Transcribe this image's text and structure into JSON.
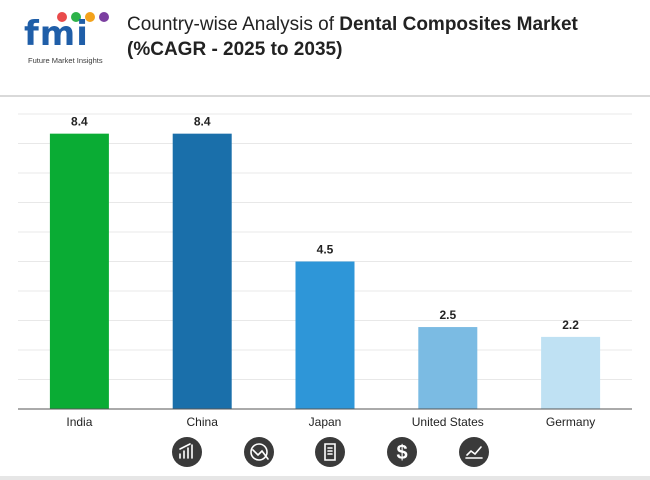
{
  "brand": {
    "logo_text": "fmi",
    "logo_subtitle": "Future Market Insights"
  },
  "title": {
    "prefix": "Country-wise Analysis of ",
    "highlight": "Dental Composites Market",
    "line2": "(%CAGR - 2025 to 2035)"
  },
  "chart_data": {
    "type": "bar",
    "categories": [
      "India",
      "China",
      "Japan",
      "United States",
      "Germany"
    ],
    "values": [
      8.4,
      8.4,
      4.5,
      2.5,
      2.2
    ],
    "data_labels": [
      "8.4",
      "8.4",
      "4.5",
      "2.5",
      "2.2"
    ],
    "colors": [
      "#0aac34",
      "#1a6faa",
      "#2e96d8",
      "#7bbbe3",
      "#bfe1f3"
    ],
    "ylim": [
      0,
      9
    ],
    "grid": true,
    "title": "Country-wise Analysis of Dental Composites Market (%CAGR - 2025 to 2035)",
    "xlabel": "",
    "ylabel": ""
  },
  "footer_icons": [
    "growth-chart-icon",
    "trend-analysis-icon",
    "report-document-icon",
    "dollar-icon",
    "market-trend-icon"
  ],
  "colors": {
    "icon_bg": "#3a3a3a",
    "grid": "#e8e8e8",
    "axis": "#555555",
    "brand_blue": "#1f5ea8"
  }
}
